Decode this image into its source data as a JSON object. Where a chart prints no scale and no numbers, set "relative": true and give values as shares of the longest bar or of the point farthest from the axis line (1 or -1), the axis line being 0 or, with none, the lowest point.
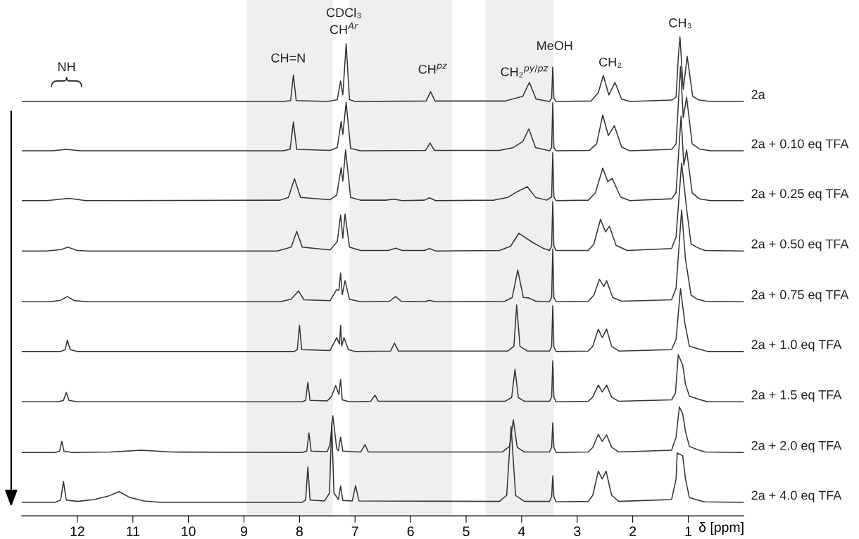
{
  "chart_data": {
    "type": "line",
    "relative": true,
    "xlabel": "δ [ppm]",
    "xlim": [
      13,
      0
    ],
    "legend": false,
    "grid": false,
    "marker": "none",
    "line_style": "solid",
    "xticks": [
      12,
      11,
      10,
      9,
      8,
      7,
      6,
      5,
      4,
      3,
      2,
      1
    ],
    "bands": [
      {
        "axis": "x",
        "from": 8.95,
        "to": 7.4,
        "label": null,
        "color": "#efefef"
      },
      {
        "axis": "x",
        "from": 7.1,
        "to": 5.25,
        "label": null,
        "color": "#efefef"
      },
      {
        "axis": "x",
        "from": 4.65,
        "to": 3.42,
        "label": null,
        "color": "#efefef"
      }
    ],
    "annotations": [
      "NH",
      "CH=N",
      "CDCl₃",
      "CH$^{Ar}$",
      "CH$^{pz}$",
      "CH₂$^{py/pz}$",
      "MeOH",
      "CH₂",
      "CH₃"
    ],
    "series": [
      {
        "name": "2a",
        "color": "#333333",
        "x": [
          13,
          8.3,
          8.16,
          8.11,
          8.06,
          7.5,
          7.32,
          7.26,
          7.22,
          7.16,
          7.1,
          7.0,
          5.72,
          5.64,
          5.56,
          4.3,
          3.98,
          3.86,
          3.74,
          3.5,
          3.46,
          3.44,
          3.42,
          3.38,
          2.75,
          2.62,
          2.53,
          2.43,
          2.32,
          2.2,
          2.05,
          1.3,
          1.22,
          1.18,
          1.15,
          1.09,
          1.02,
          0.92,
          0.8,
          0.6,
          0
        ],
        "values": [
          0.861,
          0.861,
          0.863,
          0.918,
          0.863,
          0.861,
          0.865,
          0.905,
          0.875,
          0.985,
          0.865,
          0.861,
          0.862,
          0.882,
          0.862,
          0.862,
          0.872,
          0.902,
          0.866,
          0.861,
          0.868,
          0.935,
          0.868,
          0.861,
          0.862,
          0.88,
          0.917,
          0.875,
          0.902,
          0.866,
          0.861,
          0.864,
          0.87,
          0.955,
          1.0,
          0.887,
          0.958,
          0.872,
          0.864,
          0.861,
          0.861
        ]
      },
      {
        "name": "2a + 0.10 eq TFA",
        "color": "#333333",
        "x": [
          13,
          12.45,
          12.2,
          11.95,
          8.3,
          8.17,
          8.11,
          8.05,
          7.45,
          7.32,
          7.25,
          7.22,
          7.16,
          7.08,
          6.9,
          5.73,
          5.65,
          5.57,
          4.4,
          4.15,
          3.98,
          3.87,
          3.75,
          3.5,
          3.46,
          3.44,
          3.42,
          3.38,
          2.78,
          2.65,
          2.54,
          2.44,
          2.33,
          2.2,
          2.05,
          1.3,
          1.22,
          1.14,
          1.09,
          1.03,
          0.93,
          0.8,
          0.6,
          0
        ],
        "values": [
          0.755,
          0.755,
          0.758,
          0.755,
          0.755,
          0.758,
          0.817,
          0.758,
          0.756,
          0.762,
          0.818,
          0.79,
          0.859,
          0.76,
          0.755,
          0.756,
          0.772,
          0.756,
          0.756,
          0.762,
          0.775,
          0.802,
          0.762,
          0.755,
          0.762,
          0.858,
          0.762,
          0.755,
          0.756,
          0.77,
          0.832,
          0.788,
          0.809,
          0.763,
          0.755,
          0.758,
          0.77,
          0.936,
          0.826,
          0.87,
          0.77,
          0.759,
          0.755,
          0.755
        ]
      },
      {
        "name": "2a + 0.25 eq TFA",
        "color": "#333333",
        "x": [
          13,
          12.55,
          12.15,
          11.85,
          8.35,
          8.2,
          8.09,
          7.98,
          7.45,
          7.33,
          7.25,
          7.22,
          7.17,
          7.08,
          6.9,
          6.45,
          6.3,
          6.15,
          5.75,
          5.66,
          5.55,
          4.5,
          4.25,
          4.1,
          3.9,
          3.75,
          3.55,
          3.46,
          3.44,
          3.42,
          3.38,
          2.8,
          2.67,
          2.54,
          2.45,
          2.37,
          2.22,
          2.05,
          1.3,
          1.22,
          1.13,
          1.08,
          1.03,
          0.93,
          0.8,
          0.6,
          0
        ],
        "values": [
          0.648,
          0.648,
          0.653,
          0.648,
          0.649,
          0.655,
          0.695,
          0.655,
          0.65,
          0.66,
          0.719,
          0.69,
          0.757,
          0.655,
          0.649,
          0.649,
          0.651,
          0.648,
          0.649,
          0.654,
          0.648,
          0.649,
          0.655,
          0.666,
          0.678,
          0.655,
          0.649,
          0.656,
          0.751,
          0.656,
          0.648,
          0.649,
          0.665,
          0.718,
          0.689,
          0.696,
          0.656,
          0.648,
          0.652,
          0.665,
          0.83,
          0.724,
          0.757,
          0.665,
          0.652,
          0.648,
          0.648
        ]
      },
      {
        "name": "2a + 0.50 eq TFA",
        "color": "#333333",
        "x": [
          13,
          12.55,
          12.3,
          12.17,
          12.0,
          11.8,
          8.4,
          8.15,
          8.05,
          7.95,
          7.45,
          7.32,
          7.26,
          7.22,
          7.18,
          7.1,
          6.9,
          6.4,
          6.27,
          6.15,
          5.75,
          5.66,
          5.55,
          4.4,
          4.2,
          4.05,
          3.8,
          3.6,
          3.5,
          3.46,
          3.44,
          3.42,
          3.38,
          2.8,
          2.7,
          2.58,
          2.49,
          2.42,
          2.3,
          2.1,
          1.3,
          1.22,
          1.12,
          1.03,
          0.95,
          0.85,
          0.7,
          0
        ],
        "values": [
          0.54,
          0.54,
          0.543,
          0.548,
          0.541,
          0.54,
          0.54,
          0.548,
          0.582,
          0.548,
          0.542,
          0.56,
          0.617,
          0.567,
          0.619,
          0.548,
          0.541,
          0.541,
          0.546,
          0.541,
          0.541,
          0.545,
          0.54,
          0.541,
          0.55,
          0.578,
          0.558,
          0.545,
          0.541,
          0.55,
          0.646,
          0.55,
          0.541,
          0.541,
          0.555,
          0.608,
          0.581,
          0.593,
          0.552,
          0.541,
          0.545,
          0.57,
          0.729,
          0.631,
          0.555,
          0.548,
          0.541,
          0.54
        ]
      },
      {
        "name": "2a + 0.75 eq TFA",
        "color": "#333333",
        "x": [
          13,
          12.5,
          12.3,
          12.18,
          12.05,
          11.8,
          8.35,
          8.15,
          8.02,
          7.92,
          7.45,
          7.33,
          7.29,
          7.26,
          7.23,
          7.18,
          7.1,
          6.9,
          6.38,
          6.27,
          6.17,
          5.75,
          5.66,
          5.55,
          4.3,
          4.17,
          4.07,
          3.97,
          3.87,
          3.75,
          3.5,
          3.46,
          3.44,
          3.42,
          3.38,
          2.8,
          2.7,
          2.6,
          2.52,
          2.47,
          2.36,
          2.2,
          1.3,
          1.22,
          1.12,
          1.05,
          0.95,
          0.85,
          0.7,
          0
        ],
        "values": [
          0.431,
          0.431,
          0.434,
          0.442,
          0.433,
          0.431,
          0.431,
          0.436,
          0.454,
          0.435,
          0.433,
          0.457,
          0.455,
          0.493,
          0.446,
          0.476,
          0.436,
          0.431,
          0.432,
          0.442,
          0.432,
          0.431,
          0.434,
          0.431,
          0.432,
          0.44,
          0.499,
          0.44,
          0.439,
          0.432,
          0.431,
          0.44,
          0.544,
          0.44,
          0.431,
          0.432,
          0.445,
          0.479,
          0.464,
          0.476,
          0.44,
          0.432,
          0.435,
          0.46,
          0.628,
          0.522,
          0.445,
          0.437,
          0.432,
          0.431
        ]
      },
      {
        "name": "2a + 1.0 eq TFA",
        "color": "#333333",
        "x": [
          13,
          12.3,
          12.22,
          12.18,
          12.13,
          12.0,
          8.1,
          8.04,
          8.0,
          7.96,
          7.45,
          7.33,
          7.28,
          7.26,
          7.24,
          7.2,
          7.12,
          7.0,
          6.36,
          6.29,
          6.22,
          4.25,
          4.14,
          4.09,
          4.03,
          3.9,
          3.5,
          3.46,
          3.44,
          3.42,
          3.38,
          2.8,
          2.72,
          2.62,
          2.55,
          2.47,
          2.38,
          2.25,
          1.3,
          1.22,
          1.14,
          1.06,
          0.98,
          0.8,
          0.65,
          0
        ],
        "values": [
          0.324,
          0.324,
          0.328,
          0.348,
          0.328,
          0.324,
          0.324,
          0.328,
          0.38,
          0.328,
          0.326,
          0.354,
          0.34,
          0.38,
          0.336,
          0.354,
          0.328,
          0.324,
          0.325,
          0.342,
          0.325,
          0.325,
          0.335,
          0.424,
          0.335,
          0.325,
          0.325,
          0.334,
          0.422,
          0.334,
          0.324,
          0.325,
          0.335,
          0.372,
          0.354,
          0.372,
          0.335,
          0.325,
          0.328,
          0.35,
          0.459,
          0.384,
          0.335,
          0.329,
          0.324,
          0.324
        ]
      },
      {
        "name": "2a + 1.5 eq TFA",
        "color": "#333333",
        "x": [
          13,
          12.35,
          12.25,
          12.2,
          12.15,
          12.0,
          7.95,
          7.89,
          7.85,
          7.81,
          7.5,
          7.42,
          7.35,
          7.29,
          7.26,
          7.23,
          7.1,
          6.72,
          6.64,
          6.58,
          4.3,
          4.18,
          4.12,
          4.06,
          3.95,
          3.5,
          3.46,
          3.44,
          3.42,
          3.38,
          2.8,
          2.72,
          2.62,
          2.55,
          2.47,
          2.38,
          2.25,
          1.3,
          1.23,
          1.18,
          1.1,
          1.05,
          0.98,
          0.8,
          0.65,
          0
        ],
        "values": [
          0.216,
          0.216,
          0.219,
          0.236,
          0.219,
          0.216,
          0.216,
          0.219,
          0.258,
          0.219,
          0.218,
          0.228,
          0.251,
          0.232,
          0.264,
          0.22,
          0.216,
          0.217,
          0.23,
          0.217,
          0.217,
          0.225,
          0.286,
          0.225,
          0.217,
          0.217,
          0.226,
          0.304,
          0.226,
          0.216,
          0.217,
          0.226,
          0.252,
          0.237,
          0.252,
          0.226,
          0.217,
          0.22,
          0.235,
          0.317,
          0.295,
          0.254,
          0.228,
          0.221,
          0.216,
          0.216
        ]
      },
      {
        "name": "2a + 2.0 eq TFA",
        "color": "#333333",
        "x": [
          13,
          12.4,
          12.32,
          12.28,
          12.24,
          12.1,
          11.4,
          10.85,
          10.3,
          7.95,
          7.87,
          7.83,
          7.79,
          7.5,
          7.45,
          7.4,
          7.33,
          7.3,
          7.26,
          7.22,
          6.9,
          6.82,
          6.76,
          4.35,
          4.22,
          4.15,
          4.08,
          3.95,
          3.5,
          3.46,
          3.44,
          3.42,
          3.38,
          2.8,
          2.72,
          2.62,
          2.55,
          2.47,
          2.38,
          2.25,
          1.3,
          1.22,
          1.16,
          1.1,
          1.05,
          0.98,
          0.83,
          0.7,
          0
        ],
        "values": [
          0.107,
          0.107,
          0.11,
          0.131,
          0.11,
          0.107,
          0.108,
          0.112,
          0.108,
          0.107,
          0.11,
          0.149,
          0.11,
          0.109,
          0.125,
          0.186,
          0.115,
          0.111,
          0.14,
          0.11,
          0.108,
          0.124,
          0.108,
          0.108,
          0.12,
          0.177,
          0.118,
          0.108,
          0.108,
          0.118,
          0.171,
          0.118,
          0.107,
          0.108,
          0.118,
          0.146,
          0.131,
          0.145,
          0.118,
          0.108,
          0.112,
          0.14,
          0.205,
          0.19,
          0.152,
          0.12,
          0.113,
          0.108,
          0.107
        ]
      },
      {
        "name": "2a + 4.0 eq TFA",
        "color": "#333333",
        "x": [
          13,
          12.4,
          12.3,
          12.25,
          12.2,
          12.0,
          11.7,
          11.45,
          11.25,
          11.05,
          10.8,
          10.5,
          7.95,
          7.89,
          7.85,
          7.81,
          7.55,
          7.46,
          7.42,
          7.38,
          7.3,
          7.26,
          7.22,
          7.05,
          6.99,
          6.93,
          4.4,
          4.27,
          4.19,
          4.11,
          3.95,
          3.5,
          3.46,
          3.44,
          3.42,
          3.38,
          2.8,
          2.72,
          2.62,
          2.55,
          2.48,
          2.38,
          2.25,
          1.3,
          1.22,
          1.2,
          1.1,
          1.05,
          0.98,
          0.83,
          0.7,
          0
        ],
        "values": [
          0,
          0,
          0.005,
          0.045,
          0.005,
          0.002,
          0.006,
          0.013,
          0.023,
          0.01,
          0.003,
          0,
          0,
          0.005,
          0.076,
          0.005,
          0.003,
          0.02,
          0.171,
          0.02,
          0.006,
          0.035,
          0.004,
          0.003,
          0.036,
          0.003,
          0.002,
          0.015,
          0.163,
          0.015,
          0.002,
          0.002,
          0.012,
          0.057,
          0.012,
          0.001,
          0.002,
          0.015,
          0.067,
          0.05,
          0.067,
          0.015,
          0.002,
          0.006,
          0.05,
          0.106,
          0.1,
          0.05,
          0.01,
          0.005,
          0.001,
          0
        ]
      }
    ]
  }
}
